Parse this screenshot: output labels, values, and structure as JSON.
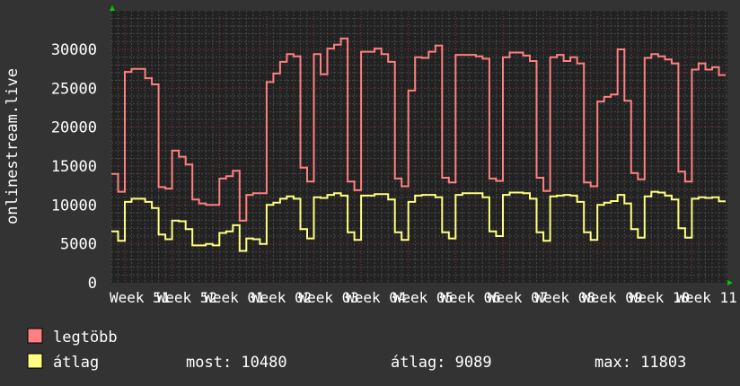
{
  "chart_data": {
    "type": "line",
    "title": "",
    "xlabel": "",
    "ylabel": "onlinestream.live",
    "ylim": [
      0,
      34700
    ],
    "yticks": [
      0,
      5000,
      10000,
      15000,
      20000,
      25000,
      30000
    ],
    "xtick_labels": [
      "Week 51",
      "Week 52",
      "Week 01",
      "Week 02",
      "Week 03",
      "Week 04",
      "Week 05",
      "Week 06",
      "Week 07",
      "Week 08",
      "Week 09",
      "Week 10",
      "Week 11"
    ],
    "x_unit": "day",
    "grid": true,
    "legend_placement": "bottom-left",
    "series": [
      {
        "name": "legtöbb",
        "color": "#ff8080",
        "values": [
          14000,
          11700,
          27100,
          27500,
          27500,
          26300,
          25500,
          12300,
          12100,
          17000,
          16200,
          15200,
          10700,
          10200,
          10000,
          10000,
          13400,
          13700,
          14400,
          8000,
          11300,
          11500,
          11500,
          25800,
          26900,
          28400,
          29400,
          29100,
          14800,
          13000,
          29400,
          26800,
          30100,
          30600,
          31400,
          13000,
          11900,
          29700,
          29700,
          30100,
          29400,
          28400,
          13400,
          12400,
          24700,
          29000,
          28900,
          29700,
          30500,
          13500,
          12900,
          29300,
          29300,
          29300,
          29100,
          28800,
          13400,
          13100,
          29000,
          29600,
          29600,
          29200,
          28500,
          13500,
          11800,
          29000,
          29300,
          28500,
          29000,
          28200,
          12900,
          12400,
          23300,
          23900,
          24200,
          30000,
          23400,
          14100,
          13300,
          28900,
          29400,
          29100,
          28700,
          28200,
          14300,
          13000,
          27400,
          28200,
          27400,
          27700,
          26700
        ]
      },
      {
        "name": "átlag",
        "color": "#ffff80",
        "values": [
          6600,
          5400,
          10400,
          10800,
          10800,
          10400,
          9600,
          6200,
          5600,
          8000,
          7900,
          6900,
          4800,
          4800,
          5000,
          4800,
          6400,
          6600,
          7400,
          4100,
          5700,
          5600,
          5000,
          10000,
          10300,
          10800,
          11100,
          10800,
          6900,
          5700,
          11000,
          10900,
          11300,
          11500,
          11200,
          6500,
          5500,
          11200,
          11200,
          11400,
          11400,
          10700,
          6500,
          5500,
          10400,
          11200,
          11300,
          11300,
          11000,
          6500,
          5700,
          11300,
          11500,
          11500,
          11500,
          11000,
          6600,
          6000,
          11300,
          11600,
          11600,
          11500,
          10800,
          6500,
          5400,
          11100,
          11200,
          11300,
          11200,
          10400,
          6500,
          5500,
          10000,
          10300,
          10500,
          11300,
          10200,
          6900,
          5800,
          11100,
          11700,
          11600,
          11200,
          10700,
          7000,
          5800,
          10800,
          11000,
          10900,
          11000,
          10480
        ]
      }
    ]
  },
  "legend": {
    "max_label": "legtöbb",
    "avg_label": "átlag",
    "now": "most: 10480",
    "avg": "átlag: 9089",
    "max": "max: 11803"
  },
  "colors": {
    "background": "#333333",
    "plot_background": "#222222",
    "major_grid": "#8a3a3a",
    "minor_grid": "#4a4a4a",
    "axis_arrow": "#00cc00"
  }
}
